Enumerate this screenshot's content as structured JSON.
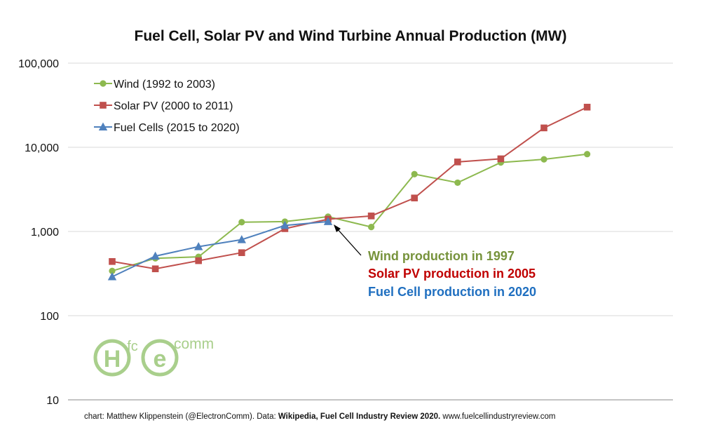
{
  "chart_data": {
    "type": "line",
    "title": "Fuel Cell, Solar PV and Wind Turbine Annual Production (MW)",
    "y_scale": "log",
    "ylim": [
      10,
      100000
    ],
    "ytick_labels": [
      "10",
      "100",
      "1,000",
      "10,000",
      "100,000"
    ],
    "grid": true,
    "legend_position": "top-left",
    "series": [
      {
        "name": "Wind (1992 to 2003)",
        "color": "#8db94f",
        "marker": "circle",
        "values": [
          340,
          480,
          500,
          1290,
          1310,
          1500,
          1130,
          4800,
          3800,
          6600,
          7200,
          8300
        ]
      },
      {
        "name": "Solar PV (2000 to 2011)",
        "color": "#c0504d",
        "marker": "square",
        "values": [
          440,
          360,
          450,
          560,
          1080,
          1400,
          1530,
          2500,
          6700,
          7300,
          17000,
          30000
        ]
      },
      {
        "name": "Fuel Cells (2015 to 2020)",
        "color": "#4f81bd",
        "marker": "triangle",
        "values": [
          290,
          510,
          660,
          800,
          1180,
          1310
        ]
      }
    ],
    "annotations": [
      {
        "text": "Wind production in 1997",
        "color": "#77933c"
      },
      {
        "text": "Solar PV production in 2005",
        "color": "#c00000"
      },
      {
        "text": "Fuel Cell production in 2020",
        "color": "#1f6fc0"
      }
    ]
  },
  "credit": {
    "prefix": "chart: Matthew Klippenstein (@ElectronComm). Data: ",
    "bold": "Wikipedia, Fuel Cell Industry Review 2020.",
    "suffix": " www.fuelcellindustryreview.com"
  },
  "logo": {
    "h": "H",
    "fc": "fc",
    "e": "e",
    "comm": "comm"
  }
}
